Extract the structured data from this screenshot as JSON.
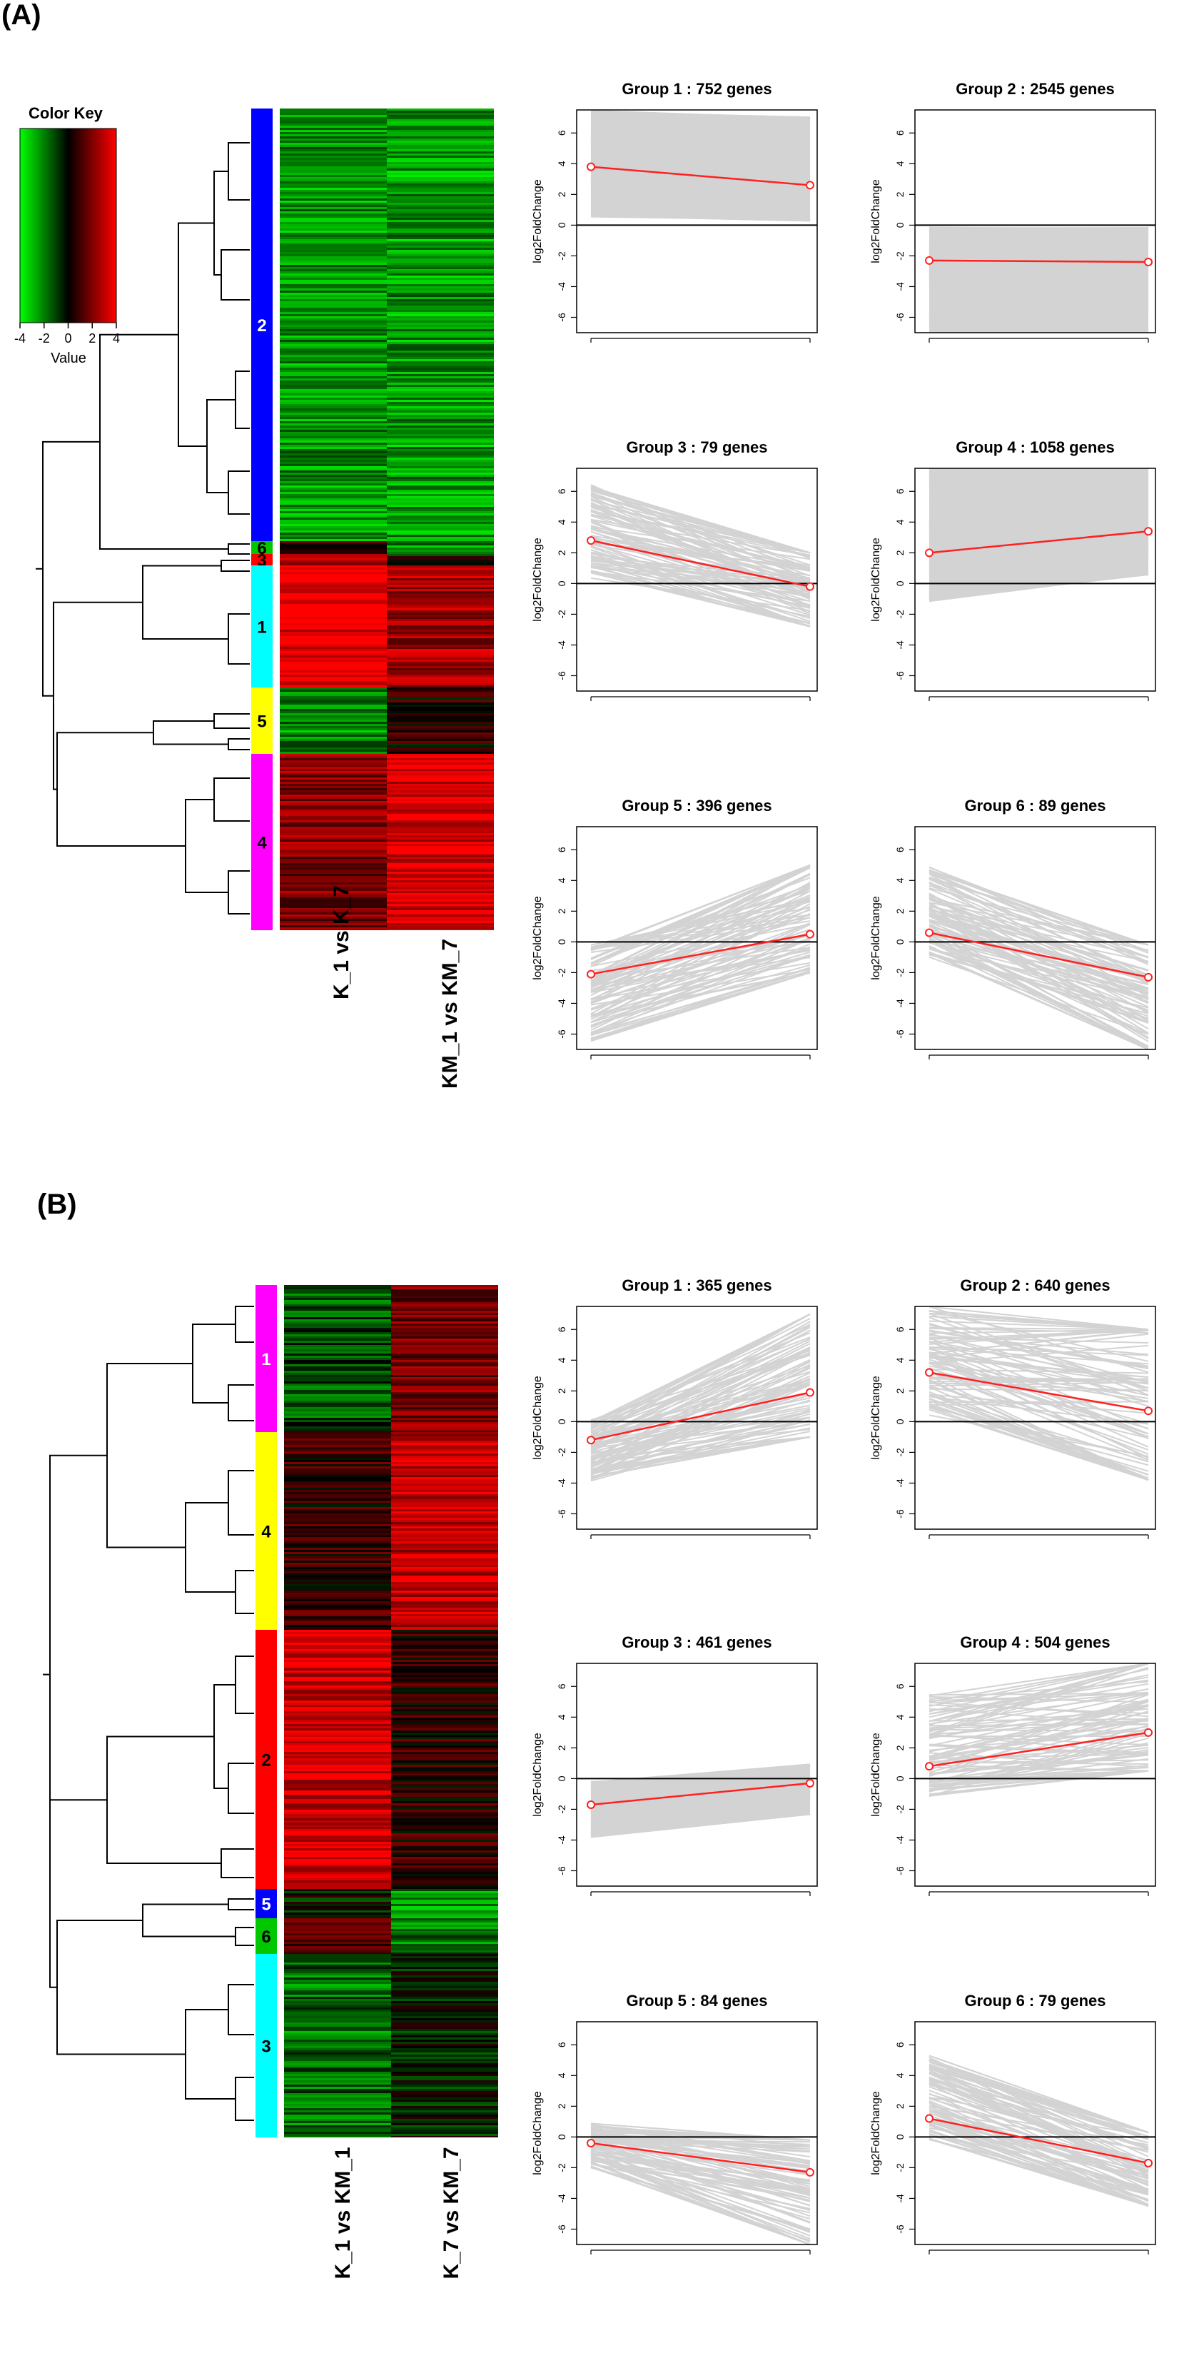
{
  "colors": {
    "panel_a_bars": {
      "2": "#0000ff",
      "6": "#00c800",
      "3": "#ff0000",
      "1": "#00ffff",
      "5": "#ffff00",
      "4": "#ff00ff"
    },
    "panel_b_bars": {
      "1": "#ff00ff",
      "4": "#ffff00",
      "2": "#ff0000",
      "5": "#0000ff",
      "6": "#00c800",
      "3": "#00ffff"
    },
    "trend_line": "#ff2020",
    "gene_lines": "#d3d3d3",
    "zero_line": "#000000"
  },
  "color_key": {
    "title": "Color Key",
    "xlabel": "Value",
    "ticks": [
      "-4",
      "-2",
      "0",
      "2",
      "4"
    ],
    "range": [
      -4,
      4
    ],
    "low_color": "#00ff00",
    "mid_color": "#000000",
    "high_color": "#ff0000"
  },
  "panels": [
    {
      "label": "(A)",
      "heatmap": {
        "columns": [
          "K_1 vs K_7",
          "KM_1 vs KM_7"
        ],
        "groups": [
          {
            "id": "2",
            "rows": 2545,
            "mean": [
              -2.3,
              -2.4
            ]
          },
          {
            "id": "6",
            "rows": 89,
            "mean": [
              0.6,
              -2.3
            ]
          },
          {
            "id": "3",
            "rows": 79,
            "mean": [
              2.8,
              -0.2
            ]
          },
          {
            "id": "1",
            "rows": 752,
            "mean": [
              3.8,
              2.6
            ]
          },
          {
            "id": "5",
            "rows": 396,
            "mean": [
              -2.1,
              0.5
            ]
          },
          {
            "id": "4",
            "rows": 1058,
            "mean": [
              2.0,
              3.4
            ]
          }
        ]
      }
    },
    {
      "label": "(B)",
      "heatmap": {
        "columns": [
          "K_1 vs KM_1",
          "K_7 vs KM_7"
        ],
        "groups": [
          {
            "id": "1",
            "rows": 365,
            "mean": [
              -1.2,
              1.9
            ]
          },
          {
            "id": "4",
            "rows": 504,
            "mean": [
              0.8,
              3.0
            ]
          },
          {
            "id": "2",
            "rows": 640,
            "mean": [
              3.2,
              0.7
            ]
          },
          {
            "id": "5",
            "rows": 84,
            "mean": [
              -0.4,
              -2.3
            ]
          },
          {
            "id": "6",
            "rows": 79,
            "mean": [
              1.2,
              -1.7
            ]
          },
          {
            "id": "3",
            "rows": 461,
            "mean": [
              -1.7,
              -0.3
            ]
          }
        ]
      }
    }
  ],
  "chart_data": [
    {
      "type": "line",
      "panel": "A",
      "title": "Group 1 : 752 genes",
      "ylabel": "log2FoldChange",
      "ylim": [
        -7,
        7.5
      ],
      "yticks": [
        -6,
        -4,
        -2,
        0,
        2,
        4,
        6
      ],
      "x": [
        1,
        2
      ],
      "mean": [
        3.8,
        2.6
      ],
      "band_low": [
        0.5,
        0.3
      ],
      "band_high": [
        7.5,
        7.0
      ],
      "bundle": "band",
      "pattern": "down"
    },
    {
      "type": "line",
      "panel": "A",
      "title": "Group 2 : 2545 genes",
      "ylabel": "log2FoldChange",
      "ylim": [
        -7,
        7.5
      ],
      "yticks": [
        -6,
        -4,
        -2,
        0,
        2,
        4,
        6
      ],
      "x": [
        1,
        2
      ],
      "mean": [
        -2.3,
        -2.4
      ],
      "band_low": [
        -7,
        -7
      ],
      "band_high": [
        -0.1,
        -0.2
      ],
      "bundle": "band",
      "pattern": "flat"
    },
    {
      "type": "line",
      "panel": "A",
      "title": "Group 3 : 79 genes",
      "ylabel": "log2FoldChange",
      "ylim": [
        -7,
        7.5
      ],
      "yticks": [
        -6,
        -4,
        -2,
        0,
        2,
        4,
        6
      ],
      "x": [
        1,
        2
      ],
      "mean": [
        2.8,
        -0.2
      ],
      "band_low": [
        0.3,
        -2.8
      ],
      "band_high": [
        6.5,
        2.0
      ],
      "bundle": "lines",
      "pattern": "down"
    },
    {
      "type": "line",
      "panel": "A",
      "title": "Group 4 : 1058 genes",
      "ylabel": "log2FoldChange",
      "ylim": [
        -7,
        7.5
      ],
      "yticks": [
        -6,
        -4,
        -2,
        0,
        2,
        4,
        6
      ],
      "x": [
        1,
        2
      ],
      "mean": [
        2.0,
        3.4
      ],
      "band_low": [
        -1.2,
        0.6
      ],
      "band_high": [
        7.5,
        7.5
      ],
      "bundle": "band",
      "pattern": "up"
    },
    {
      "type": "line",
      "panel": "A",
      "title": "Group 5 : 396 genes",
      "ylabel": "log2FoldChange",
      "ylim": [
        -7,
        7.5
      ],
      "yticks": [
        -6,
        -4,
        -2,
        0,
        2,
        4,
        6
      ],
      "x": [
        1,
        2
      ],
      "mean": [
        -2.1,
        0.5
      ],
      "band_low": [
        -6.5,
        -2.0
      ],
      "band_high": [
        -0.2,
        5.0
      ],
      "bundle": "lines",
      "pattern": "up"
    },
    {
      "type": "line",
      "panel": "A",
      "title": "Group 6 : 89 genes",
      "ylabel": "log2FoldChange",
      "ylim": [
        -7,
        7.5
      ],
      "yticks": [
        -6,
        -4,
        -2,
        0,
        2,
        4,
        6
      ],
      "x": [
        1,
        2
      ],
      "mean": [
        0.6,
        -2.3
      ],
      "band_low": [
        -1.0,
        -7.0
      ],
      "band_high": [
        5.0,
        -0.2
      ],
      "bundle": "lines",
      "pattern": "down"
    },
    {
      "type": "line",
      "panel": "B",
      "title": "Group 1 : 365 genes",
      "ylabel": "log2FoldChange",
      "ylim": [
        -7,
        7.5
      ],
      "yticks": [
        -6,
        -4,
        -2,
        0,
        2,
        4,
        6
      ],
      "x": [
        1,
        2
      ],
      "mean": [
        -1.2,
        1.9
      ],
      "band_low": [
        -4.0,
        -1.0
      ],
      "band_high": [
        0.2,
        7.0
      ],
      "bundle": "lines",
      "pattern": "up"
    },
    {
      "type": "line",
      "panel": "B",
      "title": "Group 2 : 640 genes",
      "ylabel": "log2FoldChange",
      "ylim": [
        -7,
        7.5
      ],
      "yticks": [
        -6,
        -4,
        -2,
        0,
        2,
        4,
        6
      ],
      "x": [
        1,
        2
      ],
      "mean": [
        3.2,
        0.7
      ],
      "band_low": [
        0.4,
        -3.8
      ],
      "band_high": [
        7.5,
        6.0
      ],
      "bundle": "lines",
      "pattern": "down"
    },
    {
      "type": "line",
      "panel": "B",
      "title": "Group 3 : 461 genes",
      "ylabel": "log2FoldChange",
      "ylim": [
        -7,
        7.5
      ],
      "yticks": [
        -6,
        -4,
        -2,
        0,
        2,
        4,
        6
      ],
      "x": [
        1,
        2
      ],
      "mean": [
        -1.7,
        -0.3
      ],
      "band_low": [
        -3.8,
        -2.3
      ],
      "band_high": [
        -0.2,
        0.9
      ],
      "bundle": "band",
      "pattern": "up"
    },
    {
      "type": "line",
      "panel": "B",
      "title": "Group 4 : 504 genes",
      "ylabel": "log2FoldChange",
      "ylim": [
        -7,
        7.5
      ],
      "yticks": [
        -6,
        -4,
        -2,
        0,
        2,
        4,
        6
      ],
      "x": [
        1,
        2
      ],
      "mean": [
        0.8,
        3.0
      ],
      "band_low": [
        -1.2,
        0.5
      ],
      "band_high": [
        5.5,
        7.5
      ],
      "bundle": "lines",
      "pattern": "up"
    },
    {
      "type": "line",
      "panel": "B",
      "title": "Group 5 : 84 genes",
      "ylabel": "log2FoldChange",
      "ylim": [
        -7,
        7.5
      ],
      "yticks": [
        -6,
        -4,
        -2,
        0,
        2,
        4,
        6
      ],
      "x": [
        1,
        2
      ],
      "mean": [
        -0.4,
        -2.3
      ],
      "band_low": [
        -2.0,
        -7.0
      ],
      "band_high": [
        0.9,
        -0.2
      ],
      "bundle": "lines",
      "pattern": "down"
    },
    {
      "type": "line",
      "panel": "B",
      "title": "Group 6 : 79 genes",
      "ylabel": "log2FoldChange",
      "ylim": [
        -7,
        7.5
      ],
      "yticks": [
        -6,
        -4,
        -2,
        0,
        2,
        4,
        6
      ],
      "x": [
        1,
        2
      ],
      "mean": [
        1.2,
        -1.7
      ],
      "band_low": [
        -0.2,
        -4.5
      ],
      "band_high": [
        5.3,
        0.3
      ],
      "bundle": "lines",
      "pattern": "down"
    }
  ]
}
